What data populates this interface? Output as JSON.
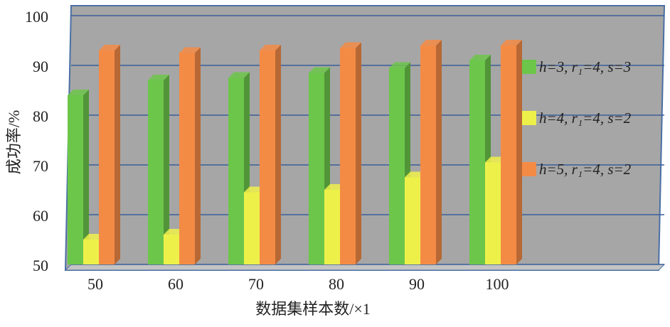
{
  "chart_data": {
    "type": "bar3d",
    "x_label": "数据集样本数/×1",
    "y_label": "成功率/%",
    "categories": [
      "50",
      "60",
      "70",
      "80",
      "90",
      "100"
    ],
    "series": [
      {
        "name": "h=3, r₁=4, s=3",
        "color": "#6cc64a",
        "values": [
          84,
          87,
          87.5,
          88.5,
          89.5,
          91
        ]
      },
      {
        "name": "h=4, r₁=4, s=2",
        "color": "#eef04a",
        "values": [
          55,
          56,
          64.5,
          65,
          67.5,
          70.5
        ]
      },
      {
        "name": "h=5, r₁=4, s=2",
        "color": "#f48b45",
        "values": [
          93,
          92.5,
          93,
          93.5,
          94,
          94
        ]
      }
    ],
    "ylim": [
      50,
      100
    ],
    "yticks": [
      50,
      60,
      70,
      80,
      90,
      100
    ],
    "grid": true
  }
}
